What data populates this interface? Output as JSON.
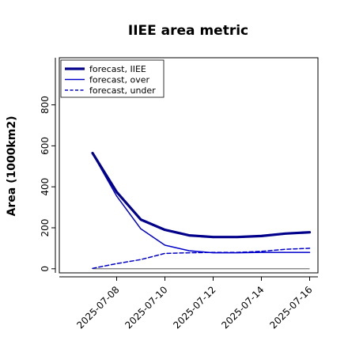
{
  "chart_data": {
    "type": "line",
    "title": "IIEE area metric",
    "xlabel": "",
    "ylabel": "Area (1000km2)",
    "ylim": [
      -20,
      1030
    ],
    "yticks": [
      0,
      200,
      400,
      600,
      800
    ],
    "x_tick_labels": [
      "2025-07-08",
      "2025-07-10",
      "2025-07-12",
      "2025-07-14",
      "2025-07-16"
    ],
    "highlight_tick": "2025-07-08",
    "highlight_color": "#2e8b22",
    "legend_position": "upper left",
    "grid": false,
    "x": [
      "2025-07-07",
      "2025-07-08",
      "2025-07-09",
      "2025-07-10",
      "2025-07-11",
      "2025-07-12",
      "2025-07-13",
      "2025-07-14",
      "2025-07-15",
      "2025-07-16"
    ],
    "series": [
      {
        "name": "forecast, IIEE",
        "style": "thick",
        "color": "#00008b",
        "values": [
          565,
          375,
          240,
          190,
          163,
          155,
          155,
          160,
          172,
          178
        ]
      },
      {
        "name": "forecast, over",
        "style": "thin",
        "color": "#0000cd",
        "values": [
          562,
          355,
          195,
          115,
          88,
          78,
          78,
          80,
          80,
          80
        ]
      },
      {
        "name": "forecast, under",
        "style": "dashed",
        "color": "#0000cd",
        "values": [
          2,
          25,
          45,
          75,
          78,
          80,
          80,
          85,
          95,
          100
        ]
      }
    ],
    "zero_line": {
      "y": 0,
      "color": "#666666"
    }
  }
}
